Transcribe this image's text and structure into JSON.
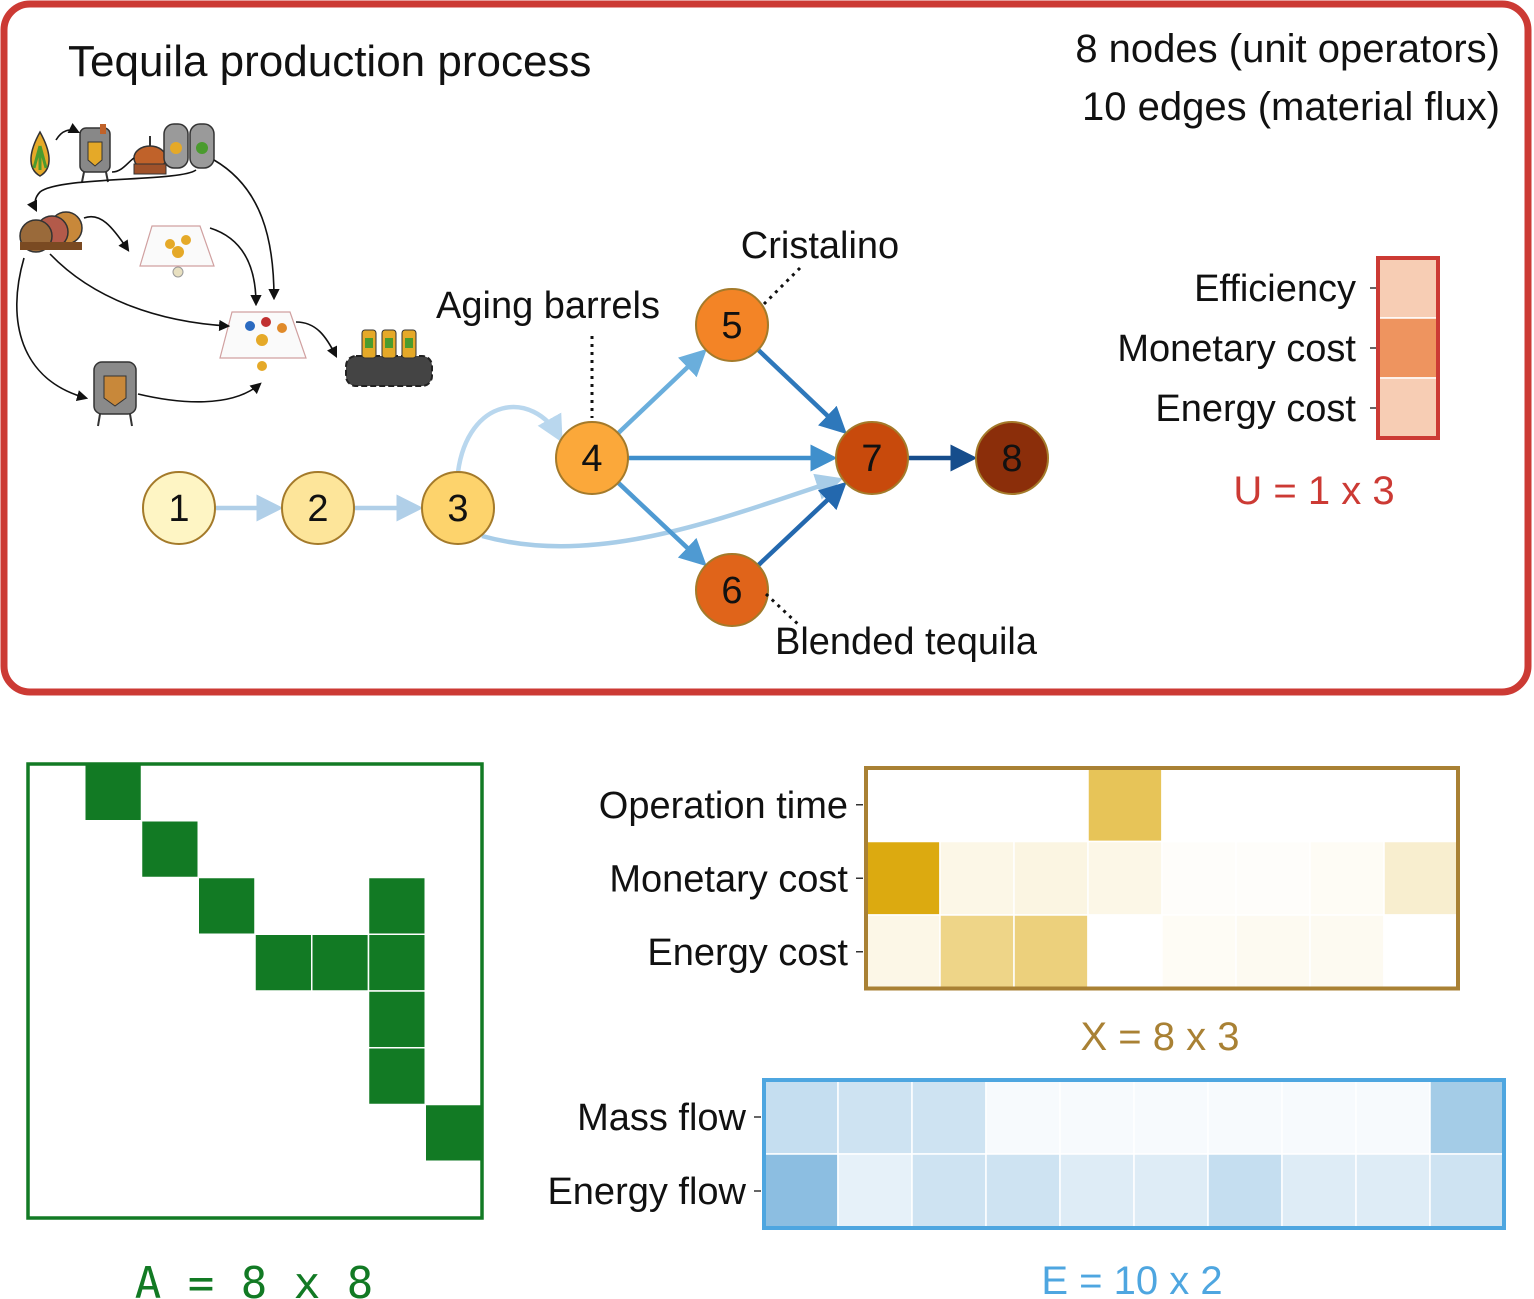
{
  "title": "Tequila production process",
  "summary": {
    "nodes_line": "8 nodes (unit operators)",
    "edges_line": "10 edges (material flux)"
  },
  "annotations": {
    "aging": "Aging barrels",
    "cristalino": "Cristalino",
    "blended": "Blended tequila"
  },
  "graph": {
    "nodes": [
      {
        "id": "1",
        "label": "1",
        "color": "#fef5c4"
      },
      {
        "id": "2",
        "label": "2",
        "color": "#fde59a"
      },
      {
        "id": "3",
        "label": "3",
        "color": "#fdd36c"
      },
      {
        "id": "4",
        "label": "4",
        "color": "#fba83a"
      },
      {
        "id": "5",
        "label": "5",
        "color": "#f38426"
      },
      {
        "id": "6",
        "label": "6",
        "color": "#e0641a"
      },
      {
        "id": "7",
        "label": "7",
        "color": "#c84a0c"
      },
      {
        "id": "8",
        "label": "8",
        "color": "#8b2e0a"
      }
    ],
    "edges": [
      {
        "from": "1",
        "to": "2"
      },
      {
        "from": "2",
        "to": "3"
      },
      {
        "from": "3",
        "to": "4"
      },
      {
        "from": "3",
        "to": "7"
      },
      {
        "from": "4",
        "to": "5"
      },
      {
        "from": "4",
        "to": "7"
      },
      {
        "from": "4",
        "to": "6"
      },
      {
        "from": "5",
        "to": "7"
      },
      {
        "from": "6",
        "to": "7"
      },
      {
        "from": "7",
        "to": "8"
      }
    ]
  },
  "U": {
    "rows": [
      "Efficiency",
      "Monetary cost",
      "Energy cost"
    ],
    "values": [
      0.35,
      0.75,
      0.35
    ],
    "caption": "U = 1 x 3",
    "color": "#cc3a34"
  },
  "A": {
    "caption": "A  =  8  x  8",
    "color": "#127a24",
    "entries": [
      [
        0,
        1
      ],
      [
        1,
        2
      ],
      [
        2,
        3
      ],
      [
        2,
        6
      ],
      [
        3,
        4
      ],
      [
        3,
        5
      ],
      [
        3,
        6
      ],
      [
        4,
        6
      ],
      [
        5,
        6
      ],
      [
        6,
        7
      ]
    ]
  },
  "X": {
    "rows": [
      "Operation time",
      "Monetary cost",
      "Energy cost"
    ],
    "values": [
      [
        0,
        0,
        0,
        0.7,
        0,
        0,
        0,
        0
      ],
      [
        1.0,
        0.1,
        0.12,
        0.1,
        0.02,
        0.02,
        0.04,
        0.2
      ],
      [
        0.1,
        0.5,
        0.55,
        0,
        0.04,
        0.06,
        0.06,
        0
      ]
    ],
    "caption": "X = 8 x 3",
    "color": "#a98134"
  },
  "E": {
    "rows": [
      "Mass flow",
      "Energy flow"
    ],
    "values": [
      [
        0.35,
        0.3,
        0.3,
        0.05,
        0.05,
        0.05,
        0.05,
        0.05,
        0.05,
        0.55
      ],
      [
        0.7,
        0.15,
        0.3,
        0.3,
        0.2,
        0.2,
        0.35,
        0.2,
        0.2,
        0.3
      ]
    ],
    "caption": "E = 10 x 2",
    "color": "#4ea6e0"
  }
}
